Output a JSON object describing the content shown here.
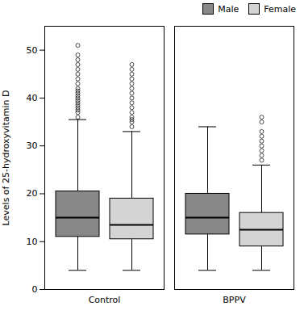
{
  "chart_data": {
    "type": "box",
    "ylabel": "Levels of 25-hydroxyvitamin D",
    "categories": [
      "Control",
      "BPPV"
    ],
    "series": [
      {
        "name": "Male",
        "color": "#888888",
        "values": [
          {
            "q1": 11,
            "median": 15,
            "q3": 20.5,
            "whislo": 4,
            "whishi": 35.5,
            "fliers": [
              36,
              37,
              37.5,
              38,
              38.5,
              39,
              39.5,
              40,
              40.5,
              41,
              41.5,
              42,
              43,
              44,
              45,
              46,
              47,
              48,
              49,
              51
            ]
          },
          {
            "q1": 11.5,
            "median": 15,
            "q3": 20,
            "whislo": 4,
            "whishi": 34,
            "fliers": []
          }
        ]
      },
      {
        "name": "Female",
        "color": "#d4d4d4",
        "values": [
          {
            "q1": 10.5,
            "median": 13.5,
            "q3": 19,
            "whislo": 4,
            "whishi": 33,
            "fliers": [
              34,
              35,
              35.5,
              36,
              37,
              38,
              39,
              40,
              41,
              42,
              43,
              44,
              45,
              46,
              47
            ]
          },
          {
            "q1": 9,
            "median": 12.5,
            "q3": 16,
            "whislo": 4,
            "whishi": 26,
            "fliers": [
              27,
              28,
              29,
              30,
              31,
              32,
              33,
              35,
              36
            ]
          }
        ]
      }
    ],
    "ylim": [
      0,
      55
    ],
    "yticks": [
      0,
      10,
      20,
      30,
      40,
      50
    ],
    "legend": "upper right",
    "grid": false
  }
}
